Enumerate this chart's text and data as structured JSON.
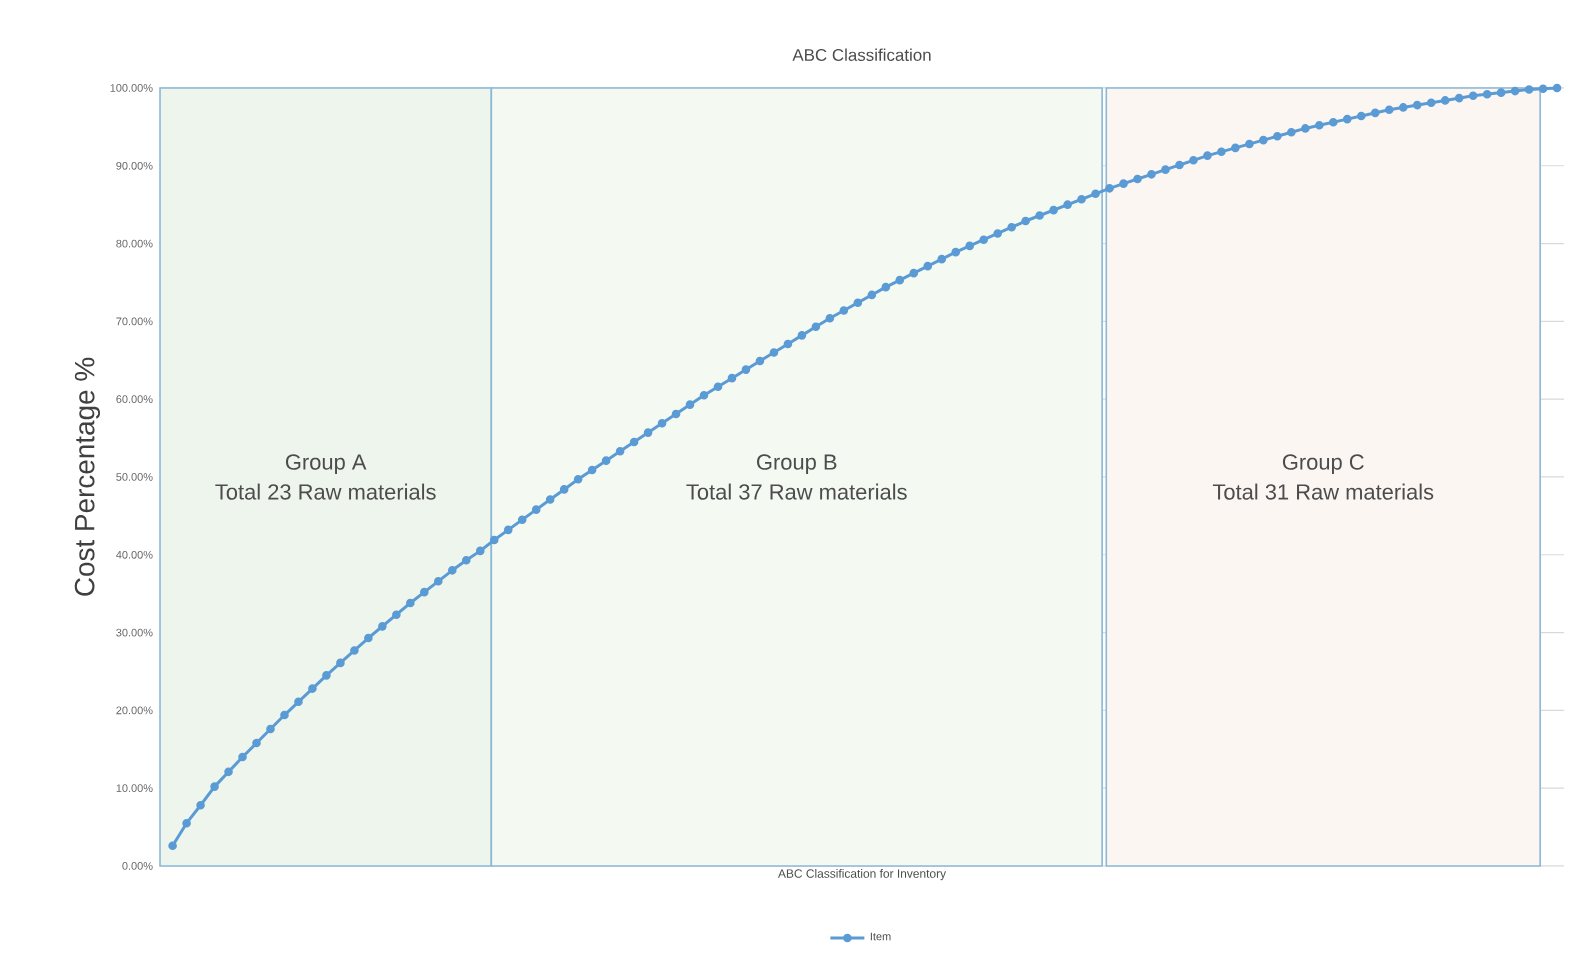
{
  "chart_data": {
    "type": "line",
    "title": "ABC Classification",
    "xlabel": "ABC Classification for Inventory",
    "ylabel": "Cost Percentage %",
    "categories": [
      null,
      null,
      null,
      null,
      null,
      null,
      null,
      null,
      null,
      null,
      null,
      null,
      null,
      null,
      null,
      null,
      null,
      null,
      null,
      null,
      null,
      null,
      null,
      null,
      null,
      null,
      null,
      null,
      null,
      null,
      null,
      null,
      null,
      null,
      null,
      null,
      null,
      null,
      null,
      null,
      null,
      null,
      null,
      null,
      null,
      null,
      null,
      null,
      null,
      null,
      null,
      null,
      null,
      null,
      null,
      null,
      null,
      null,
      null,
      null,
      null,
      null,
      null,
      null,
      null,
      null,
      null,
      null,
      null,
      null,
      null,
      null,
      null,
      null,
      null,
      null,
      null,
      null,
      null,
      null,
      null,
      null,
      null,
      null,
      null,
      null,
      null,
      null,
      null,
      null,
      null,
      null,
      null,
      null,
      null,
      null,
      null,
      null,
      null,
      null
    ],
    "series": [
      {
        "name": "Item",
        "color": "#5b9bd5",
        "values": [
          2.6,
          5.5,
          7.8,
          10.2,
          12.1,
          14.0,
          15.8,
          17.6,
          19.4,
          21.1,
          22.8,
          24.5,
          26.1,
          27.7,
          29.3,
          30.8,
          32.3,
          33.8,
          35.2,
          36.6,
          38.0,
          39.3,
          40.5,
          41.9,
          43.2,
          44.5,
          45.8,
          47.1,
          48.4,
          49.7,
          50.9,
          52.1,
          53.3,
          54.5,
          55.7,
          56.9,
          58.1,
          59.3,
          60.5,
          61.6,
          62.7,
          63.8,
          64.9,
          66.0,
          67.1,
          68.2,
          69.3,
          70.4,
          71.4,
          72.4,
          73.4,
          74.4,
          75.3,
          76.2,
          77.1,
          78.0,
          78.9,
          79.7,
          80.5,
          81.3,
          82.1,
          82.9,
          83.6,
          84.3,
          85.0,
          85.7,
          86.4,
          87.1,
          87.7,
          88.3,
          88.9,
          89.5,
          90.1,
          90.7,
          91.3,
          91.8,
          92.3,
          92.8,
          93.3,
          93.8,
          94.3,
          94.8,
          95.2,
          95.6,
          96.0,
          96.4,
          96.8,
          97.2,
          97.5,
          97.8,
          98.1,
          98.4,
          98.7,
          99.0,
          99.2,
          99.4,
          99.6,
          99.8,
          99.9,
          100.0
        ]
      }
    ],
    "ylim": [
      0,
      100
    ],
    "yticks": [
      {
        "value": 0,
        "label": "0.00%"
      },
      {
        "value": 10,
        "label": "10.00%"
      },
      {
        "value": 20,
        "label": "20.00%"
      },
      {
        "value": 30,
        "label": "30.00%"
      },
      {
        "value": 40,
        "label": "40.00%"
      },
      {
        "value": 50,
        "label": "50.00%"
      },
      {
        "value": 60,
        "label": "60.00%"
      },
      {
        "value": 70,
        "label": "70.00%"
      },
      {
        "value": 80,
        "label": "80.00%"
      },
      {
        "value": 90,
        "label": "90.00%"
      },
      {
        "value": 100,
        "label": "100.00%"
      }
    ],
    "annotations": [
      "Group A",
      "Total 23 Raw materials",
      "Group B",
      "Total 37 Raw materials",
      "Group C",
      "Total 31 Raw materials"
    ],
    "grid": "y",
    "legend": "bottom",
    "marker": "circle",
    "line_style": "solid",
    "tick_labels": "y"
  }
}
